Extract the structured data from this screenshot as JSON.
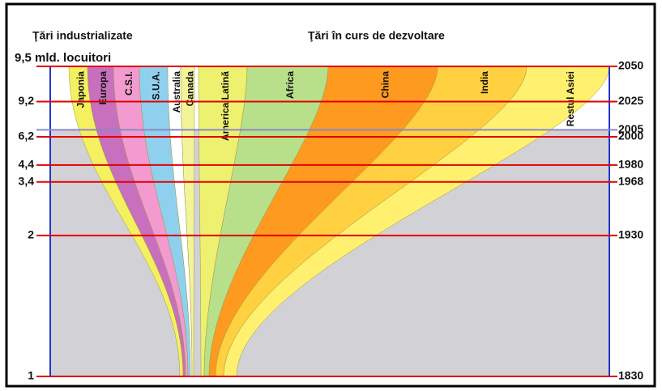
{
  "chart_data": {
    "type": "stream",
    "group_labels": [
      "Ţări industrializate",
      "Ţări în curs de dezvoltare"
    ],
    "population_label": "9,5 mld. locuitori",
    "regions": [
      "Japonia",
      "Europa",
      "C.S.I.",
      "S.U.A.",
      "Australia",
      "Canada",
      "America Latină",
      "Africa",
      "China",
      "India",
      "Restul Asiei"
    ],
    "ylim": [
      1830,
      2050
    ],
    "yticks": [
      1830,
      1930,
      1968,
      1980,
      2000,
      2005,
      2025,
      2050
    ],
    "left_labels": [
      "1",
      "2",
      "3,4",
      "4,4",
      "6,2",
      null,
      "9,2",
      null
    ]
  }
}
